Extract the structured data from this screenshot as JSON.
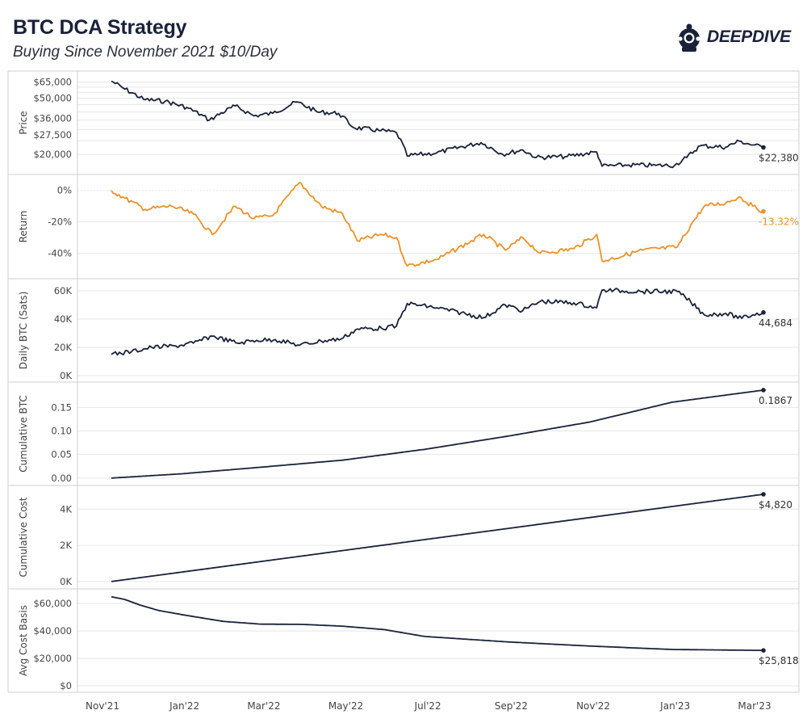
{
  "header": {
    "title": "BTC DCA Strategy",
    "subtitle": "Buying Since November 2021 $10/Day",
    "logo_text": "DEEPDIVE"
  },
  "chart_data": {
    "type": "line",
    "x_start": "2021-11-10",
    "x_end": "2023-03-10",
    "x_ticks": [
      {
        "label": "Nov'21",
        "date": "2021-11-01"
      },
      {
        "label": "Jan'22",
        "date": "2022-01-01"
      },
      {
        "label": "Mar'22",
        "date": "2022-03-01"
      },
      {
        "label": "May'22",
        "date": "2022-05-01"
      },
      {
        "label": "Jul'22",
        "date": "2022-07-01"
      },
      {
        "label": "Sep'22",
        "date": "2022-09-01"
      },
      {
        "label": "Nov'22",
        "date": "2022-11-01"
      },
      {
        "label": "Jan'23",
        "date": "2023-01-01"
      },
      {
        "label": "Mar'23",
        "date": "2023-03-01"
      }
    ],
    "colors": {
      "navy": "#1a2238",
      "orange": "#e8922a",
      "grid": "#e6e6e6",
      "divider": "#cfcfcf",
      "axis_text": "#444444"
    },
    "panels": [
      {
        "id": "price",
        "ylabel": "Price",
        "scale": "log",
        "ylim": [
          16000,
          70000
        ],
        "yticks": [
          {
            "v": 65000,
            "label": "$65,000"
          },
          {
            "v": 50000,
            "label": "$50,000"
          },
          {
            "v": 36000,
            "label": "$36,000"
          },
          {
            "v": 27500,
            "label": "$27,500"
          },
          {
            "v": 20000,
            "label": "$20,000"
          }
        ],
        "color": "navy",
        "end_label": "$22,380",
        "series": [
          [
            "2021-11-10",
            66000
          ],
          [
            "2021-11-20",
            58000
          ],
          [
            "2021-12-04",
            49000
          ],
          [
            "2021-12-20",
            47500
          ],
          [
            "2022-01-05",
            43000
          ],
          [
            "2022-01-22",
            35000
          ],
          [
            "2022-02-10",
            44000
          ],
          [
            "2022-02-24",
            37500
          ],
          [
            "2022-03-10",
            39000
          ],
          [
            "2022-03-28",
            47000
          ],
          [
            "2022-04-12",
            40000
          ],
          [
            "2022-04-28",
            39000
          ],
          [
            "2022-05-09",
            31000
          ],
          [
            "2022-05-28",
            29500
          ],
          [
            "2022-06-10",
            28500
          ],
          [
            "2022-06-18",
            19500
          ],
          [
            "2022-07-10",
            20500
          ],
          [
            "2022-08-12",
            24200
          ],
          [
            "2022-08-28",
            20000
          ],
          [
            "2022-09-12",
            21500
          ],
          [
            "2022-09-22",
            19000
          ],
          [
            "2022-10-15",
            19300
          ],
          [
            "2022-11-06",
            20800
          ],
          [
            "2022-11-10",
            16500
          ],
          [
            "2022-11-30",
            16800
          ],
          [
            "2022-12-20",
            16700
          ],
          [
            "2023-01-03",
            16700
          ],
          [
            "2023-01-12",
            19000
          ],
          [
            "2023-01-22",
            23000
          ],
          [
            "2023-02-10",
            22500
          ],
          [
            "2023-02-20",
            24800
          ],
          [
            "2023-03-02",
            23300
          ],
          [
            "2023-03-10",
            22380
          ]
        ]
      },
      {
        "id": "return",
        "ylabel": "Return",
        "scale": "linear",
        "ylim": [
          -52,
          6
        ],
        "yticks": [
          {
            "v": 0,
            "label": "0%"
          },
          {
            "v": -20,
            "label": "-20%"
          },
          {
            "v": -40,
            "label": "-40%"
          }
        ],
        "color": "orange",
        "end_label": "-13.32%",
        "series": [
          [
            "2021-11-10",
            0
          ],
          [
            "2021-11-20",
            -5
          ],
          [
            "2021-12-05",
            -12
          ],
          [
            "2021-12-25",
            -10
          ],
          [
            "2022-01-10",
            -15
          ],
          [
            "2022-01-24",
            -28
          ],
          [
            "2022-02-10",
            -10
          ],
          [
            "2022-02-24",
            -18
          ],
          [
            "2022-03-10",
            -16
          ],
          [
            "2022-03-30",
            5
          ],
          [
            "2022-04-15",
            -10
          ],
          [
            "2022-05-01",
            -15
          ],
          [
            "2022-05-12",
            -32
          ],
          [
            "2022-05-30",
            -28
          ],
          [
            "2022-06-10",
            -30
          ],
          [
            "2022-06-18",
            -48
          ],
          [
            "2022-07-10",
            -44
          ],
          [
            "2022-08-14",
            -28
          ],
          [
            "2022-08-30",
            -38
          ],
          [
            "2022-09-12",
            -30
          ],
          [
            "2022-09-25",
            -40
          ],
          [
            "2022-10-20",
            -37
          ],
          [
            "2022-11-06",
            -28
          ],
          [
            "2022-11-10",
            -45
          ],
          [
            "2022-12-10",
            -38
          ],
          [
            "2023-01-05",
            -36
          ],
          [
            "2023-01-15",
            -22
          ],
          [
            "2023-01-25",
            -10
          ],
          [
            "2023-02-10",
            -8
          ],
          [
            "2023-02-20",
            -4
          ],
          [
            "2023-03-02",
            -10
          ],
          [
            "2023-03-10",
            -13.32
          ]
        ]
      },
      {
        "id": "daily_btc",
        "ylabel": "Daily BTC (Sats)",
        "scale": "linear",
        "ylim": [
          0,
          64000
        ],
        "yticks": [
          {
            "v": 60000,
            "label": "60K"
          },
          {
            "v": 40000,
            "label": "40K"
          },
          {
            "v": 20000,
            "label": "20K"
          },
          {
            "v": 0,
            "label": "0K"
          }
        ],
        "color": "navy",
        "end_label": "44,684",
        "series": [
          [
            "2021-11-10",
            15000
          ],
          [
            "2021-11-25",
            17000
          ],
          [
            "2021-12-10",
            20000
          ],
          [
            "2021-12-28",
            21000
          ],
          [
            "2022-01-10",
            23000
          ],
          [
            "2022-01-24",
            28000
          ],
          [
            "2022-02-12",
            23000
          ],
          [
            "2022-02-26",
            25000
          ],
          [
            "2022-03-12",
            25500
          ],
          [
            "2022-03-30",
            21500
          ],
          [
            "2022-04-15",
            24500
          ],
          [
            "2022-04-30",
            26000
          ],
          [
            "2022-05-12",
            33000
          ],
          [
            "2022-05-30",
            33500
          ],
          [
            "2022-06-10",
            35000
          ],
          [
            "2022-06-18",
            51000
          ],
          [
            "2022-07-10",
            48000
          ],
          [
            "2022-08-14",
            41000
          ],
          [
            "2022-08-30",
            50000
          ],
          [
            "2022-09-12",
            46000
          ],
          [
            "2022-09-25",
            52500
          ],
          [
            "2022-10-20",
            51500
          ],
          [
            "2022-11-06",
            48000
          ],
          [
            "2022-11-10",
            60500
          ],
          [
            "2022-12-10",
            59500
          ],
          [
            "2023-01-05",
            59500
          ],
          [
            "2023-01-15",
            52000
          ],
          [
            "2023-01-25",
            43000
          ],
          [
            "2023-02-10",
            44000
          ],
          [
            "2023-02-22",
            40500
          ],
          [
            "2023-03-02",
            43000
          ],
          [
            "2023-03-10",
            44684
          ]
        ]
      },
      {
        "id": "cumulative_btc",
        "ylabel": "Cumulative BTC",
        "scale": "linear",
        "ylim": [
          -0.002,
          0.19
        ],
        "yticks": [
          {
            "v": 0.15,
            "label": "0.15"
          },
          {
            "v": 0.1,
            "label": "0.10"
          },
          {
            "v": 0.05,
            "label": "0.05"
          },
          {
            "v": 0.0,
            "label": "0.00"
          }
        ],
        "color": "navy",
        "end_label": "0.1867",
        "series": [
          [
            "2021-11-10",
            0.0
          ],
          [
            "2022-01-01",
            0.009
          ],
          [
            "2022-03-01",
            0.023
          ],
          [
            "2022-05-01",
            0.038
          ],
          [
            "2022-07-01",
            0.061
          ],
          [
            "2022-09-01",
            0.089
          ],
          [
            "2022-11-01",
            0.119
          ],
          [
            "2023-01-01",
            0.161
          ],
          [
            "2023-03-10",
            0.1867
          ]
        ]
      },
      {
        "id": "cumulative_cost",
        "ylabel": "Cumulative Cost",
        "scale": "linear",
        "ylim": [
          -50,
          4950
        ],
        "yticks": [
          {
            "v": 4000,
            "label": "4K"
          },
          {
            "v": 2000,
            "label": "2K"
          },
          {
            "v": 0,
            "label": "0K"
          }
        ],
        "color": "navy",
        "end_label": "$4,820",
        "series": [
          [
            "2021-11-10",
            0
          ],
          [
            "2023-03-10",
            4820
          ]
        ]
      },
      {
        "id": "avg_cost_basis",
        "ylabel": "Avg Cost Basis",
        "scale": "linear",
        "ylim": [
          0,
          66000
        ],
        "yticks": [
          {
            "v": 60000,
            "label": "$60,000"
          },
          {
            "v": 40000,
            "label": "$40,000"
          },
          {
            "v": 20000,
            "label": "$20,000"
          },
          {
            "v": 0,
            "label": "$0"
          }
        ],
        "color": "navy",
        "end_label": "$25,818",
        "series": [
          [
            "2021-11-10",
            65000
          ],
          [
            "2021-11-20",
            63000
          ],
          [
            "2021-12-01",
            59000
          ],
          [
            "2021-12-15",
            55000
          ],
          [
            "2022-01-01",
            52000
          ],
          [
            "2022-02-01",
            47000
          ],
          [
            "2022-03-01",
            45000
          ],
          [
            "2022-04-01",
            44800
          ],
          [
            "2022-05-01",
            43500
          ],
          [
            "2022-06-01",
            41000
          ],
          [
            "2022-07-01",
            36000
          ],
          [
            "2022-09-01",
            32000
          ],
          [
            "2022-11-01",
            29000
          ],
          [
            "2023-01-01",
            26500
          ],
          [
            "2023-03-10",
            25818
          ]
        ]
      }
    ]
  }
}
